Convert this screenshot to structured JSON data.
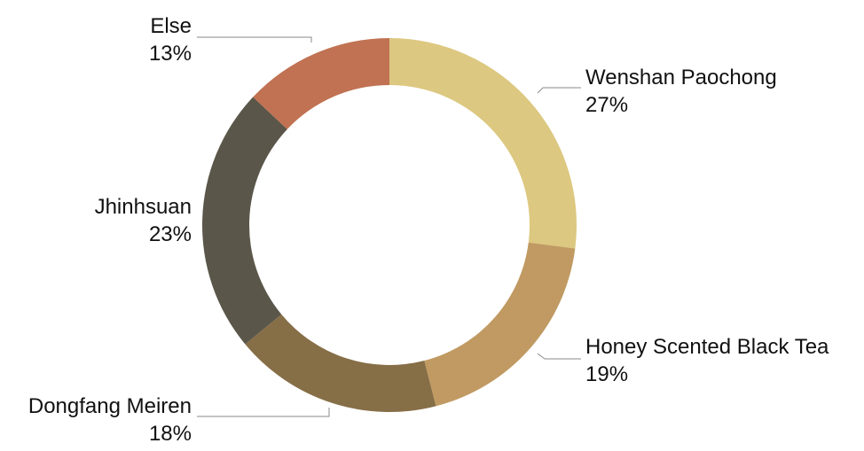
{
  "chart_data": {
    "type": "pie",
    "donut": true,
    "categories": [
      "Wenshan Paochong",
      "Honey Scented Black Tea",
      "Dongfang Meiren",
      "Jhinhsuan",
      "Else"
    ],
    "values": [
      27,
      19,
      18,
      23,
      13
    ],
    "value_labels": [
      "27%",
      "19%",
      "18%",
      "23%",
      "13%"
    ],
    "colors": [
      "#dcc880",
      "#c09a62",
      "#866e47",
      "#5a5649",
      "#c07252"
    ],
    "start_angle_deg": 0,
    "direction": "clockwise",
    "legend": "none"
  }
}
